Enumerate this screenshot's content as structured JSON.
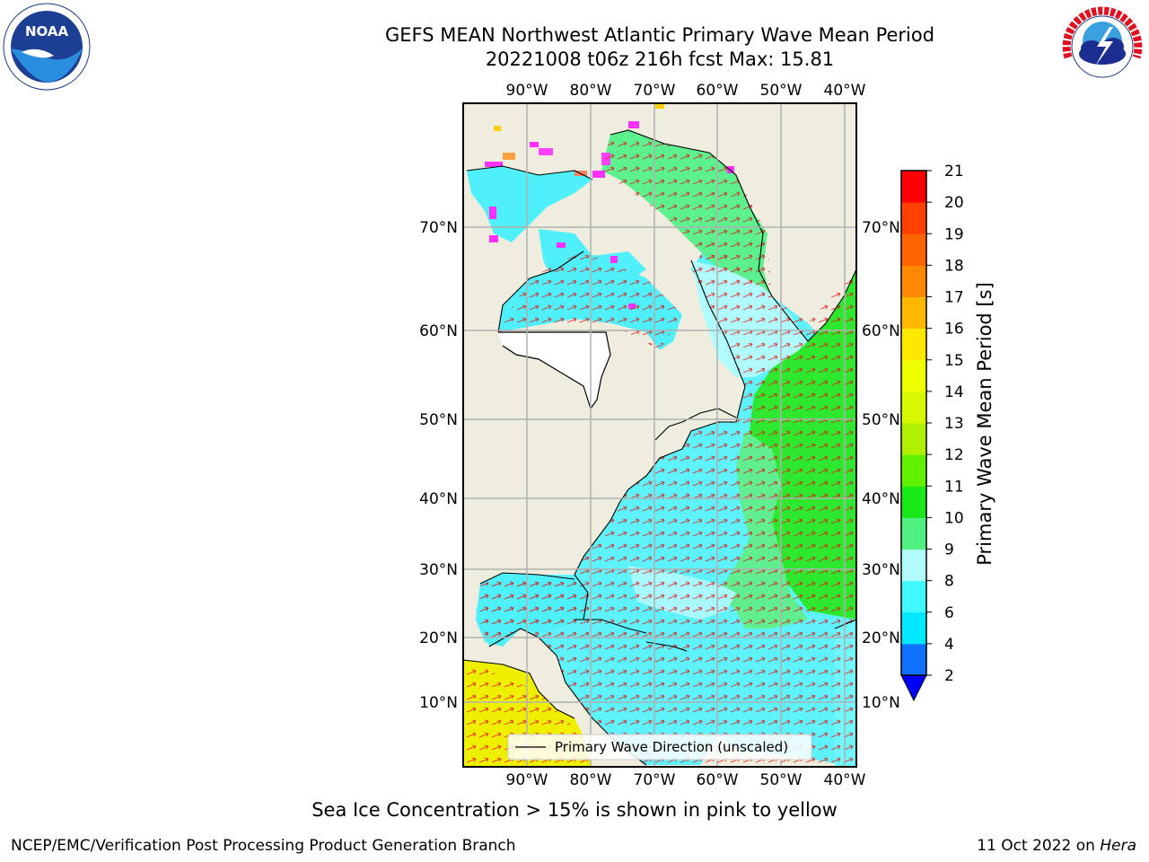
{
  "header": {
    "title_line1": "GEFS MEAN Northwest Atlantic Primary Wave Mean Period",
    "title_line2": "20221008 t06z 216h fcst   Max: 15.81"
  },
  "logos": {
    "left": "noaa-logo",
    "left_text": "NOAA",
    "right": "nws-logo",
    "right_text": "NATIONAL WEATHER SERVICE"
  },
  "map": {
    "lon_labels": [
      "90°W",
      "80°W",
      "70°W",
      "60°W",
      "50°W",
      "40°W"
    ],
    "lat_labels": [
      "70°N",
      "60°N",
      "50°N",
      "40°N",
      "30°N",
      "20°N",
      "10°N"
    ],
    "legend_label": "Primary Wave Direction (unscaled)",
    "colors": {
      "land": "#efedde",
      "ice_free_water": "#ffffff",
      "grid": "#b0b0b0",
      "arrow": "#ff0000"
    }
  },
  "colorbar": {
    "label": "Primary Wave Mean Period [s]",
    "ticks": [
      "2",
      "4",
      "6",
      "8",
      "9",
      "10",
      "11",
      "12",
      "13",
      "14",
      "15",
      "16",
      "17",
      "18",
      "19",
      "20",
      "21"
    ],
    "colors": [
      "#1070ff",
      "#00e8ff",
      "#40f8ff",
      "#b0fcfc",
      "#50f080",
      "#18e818",
      "#60f000",
      "#b0f000",
      "#d8f800",
      "#f0ff00",
      "#ffe800",
      "#ffb800",
      "#ff8800",
      "#ff6400",
      "#ff4000",
      "#ff0000"
    ],
    "extend_min_color": "#0000ff"
  },
  "note": "Sea Ice Concentration > 15% is shown in pink to yellow",
  "footer": {
    "left": "NCEP/EMC/Verification Post Processing Product Generation Branch",
    "right_date": "11 Oct 2022 on ",
    "right_machine": "Hera"
  }
}
